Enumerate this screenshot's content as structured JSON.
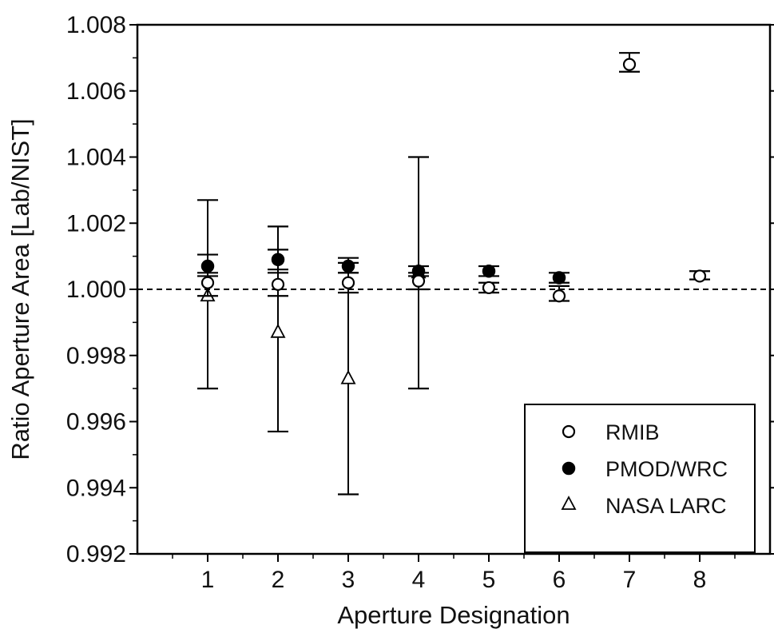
{
  "chart_data": {
    "type": "scatter",
    "title": "",
    "xlabel": "Aperture Designation",
    "ylabel": "Ratio Aperture Area [Lab/NIST]",
    "xlim": [
      0,
      9
    ],
    "ylim": [
      0.992,
      1.008
    ],
    "x_ticks": [
      1,
      2,
      3,
      4,
      5,
      6,
      7,
      8
    ],
    "x_tick_labels": [
      "1",
      "2",
      "3",
      "4",
      "5",
      "6",
      "7",
      "8"
    ],
    "y_ticks": [
      0.992,
      0.994,
      0.996,
      0.998,
      1.0,
      1.002,
      1.004,
      1.006,
      1.008
    ],
    "y_tick_labels": [
      "0.992",
      "0.994",
      "0.996",
      "0.998",
      "1.000",
      "1.002",
      "1.004",
      "1.006",
      "1.008"
    ],
    "reference_line": {
      "y": 1.0,
      "style": "dashed"
    },
    "grid": false,
    "legend": {
      "position": "bottom-right"
    },
    "series": [
      {
        "name": "RMIB",
        "marker": "open-circle",
        "points": [
          {
            "x": 1,
            "y": 1.0002,
            "err_low": 0.9998,
            "err_high": 1.0005
          },
          {
            "x": 2,
            "y": 1.00015,
            "err_low": 0.9998,
            "err_high": 1.0005
          },
          {
            "x": 3,
            "y": 1.0002,
            "err_low": 0.9999,
            "err_high": 1.0005
          },
          {
            "x": 4,
            "y": 1.00025,
            "err_low": 1.0,
            "err_high": 1.0005
          },
          {
            "x": 5,
            "y": 1.00005,
            "err_low": 0.9999,
            "err_high": 1.0002
          },
          {
            "x": 6,
            "y": 0.9998,
            "err_low": 0.99965,
            "err_high": 1.0001
          },
          {
            "x": 7,
            "y": 1.0068,
            "err_low": 1.00658,
            "err_high": 1.00715
          },
          {
            "x": 8,
            "y": 1.0004,
            "err_low": 1.0003,
            "err_high": 1.00055
          }
        ]
      },
      {
        "name": "PMOD/WRC",
        "marker": "filled-circle",
        "points": [
          {
            "x": 1,
            "y": 1.0007,
            "err_low": 1.0004,
            "err_high": 1.00105
          },
          {
            "x": 2,
            "y": 1.0009,
            "err_low": 1.0006,
            "err_high": 1.0012
          },
          {
            "x": 3,
            "y": 1.0007,
            "err_low": 1.0005,
            "err_high": 1.00095
          },
          {
            "x": 4,
            "y": 1.00055,
            "err_low": 1.0004,
            "err_high": 1.0007
          },
          {
            "x": 5,
            "y": 1.00055,
            "err_low": 1.0004,
            "err_high": 1.0007
          },
          {
            "x": 6,
            "y": 1.00035,
            "err_low": 1.0002,
            "err_high": 1.0005
          }
        ]
      },
      {
        "name": "NASA LARC",
        "marker": "open-triangle",
        "points": [
          {
            "x": 1,
            "y": 0.9998,
            "err_low": 0.997,
            "err_high": 1.0027
          },
          {
            "x": 2,
            "y": 0.9987,
            "err_low": 0.9957,
            "err_high": 1.0019
          },
          {
            "x": 3,
            "y": 0.9973,
            "err_low": 0.9938,
            "err_high": 1.0008
          },
          {
            "x": 4,
            "y": 1.0005,
            "err_low": 0.997,
            "err_high": 1.004
          }
        ]
      }
    ]
  }
}
